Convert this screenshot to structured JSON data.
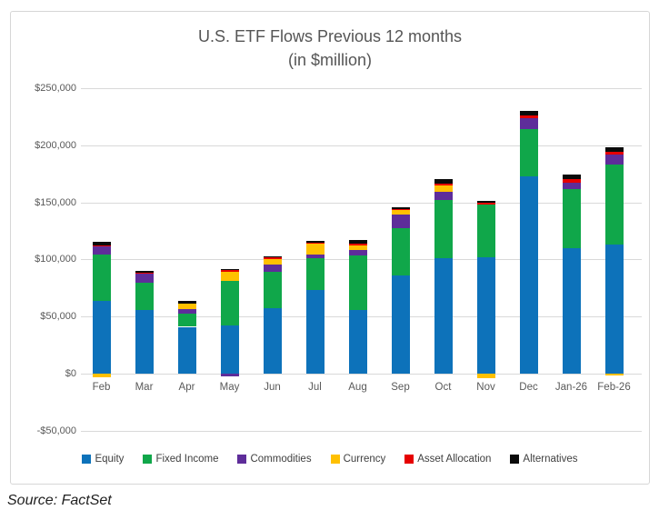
{
  "title": {
    "line1": "U.S. ETF Flows Previous 12 months",
    "line2": "(in $million)"
  },
  "source": "Source: FactSet",
  "chart_data": {
    "type": "bar",
    "stacked": true,
    "title": "U.S. ETF Flows Previous 12 months (in $million)",
    "xlabel": "",
    "ylabel": "",
    "units": "$million",
    "grid": true,
    "legend_position": "bottom",
    "ylim": [
      -50000,
      250000
    ],
    "ytick_step": 50000,
    "ytick_labels": [
      "$250,000",
      "$200,000",
      "$150,000",
      "$100,000",
      "$50,000",
      "$0",
      "-$50,000"
    ],
    "ytick_values": [
      250000,
      200000,
      150000,
      100000,
      50000,
      0,
      -50000
    ],
    "categories": [
      "Feb",
      "Mar",
      "Apr",
      "May",
      "Jun",
      "Jul",
      "Aug",
      "Sep",
      "Oct",
      "Nov",
      "Dec",
      "Jan-26",
      "Feb-26"
    ],
    "series": [
      {
        "name": "Equity",
        "color": "#0d72ba",
        "values": [
          64000,
          55500,
          41000,
          42500,
          57000,
          73000,
          56000,
          86000,
          101000,
          102000,
          172500,
          110000,
          113000
        ]
      },
      {
        "name": "Fixed Income",
        "color": "#10a74a",
        "values": [
          40000,
          24000,
          11500,
          38500,
          32500,
          28000,
          47500,
          41000,
          51000,
          46000,
          42000,
          52000,
          70500
        ]
      },
      {
        "name": "Commodities",
        "color": "#5e2d9a",
        "values": [
          7500,
          8500,
          4000,
          -2000,
          6000,
          3500,
          5000,
          12500,
          7000,
          0,
          9500,
          5500,
          8500
        ]
      },
      {
        "name": "Currency",
        "color": "#ffc000",
        "values": [
          -3000,
          0,
          4500,
          8500,
          5000,
          9500,
          4000,
          4000,
          6000,
          -4000,
          0,
          0,
          -1500
        ]
      },
      {
        "name": "Asset Allocation",
        "color": "#e60000",
        "values": [
          1000,
          500,
          0,
          1000,
          1500,
          1000,
          1500,
          1000,
          1500,
          2000,
          2500,
          3000,
          2000
        ]
      },
      {
        "name": "Alternatives",
        "color": "#0a0a0a",
        "values": [
          3000,
          1500,
          2500,
          1000,
          500,
          1500,
          3000,
          1000,
          3500,
          1500,
          3500,
          3500,
          4000
        ]
      }
    ]
  }
}
